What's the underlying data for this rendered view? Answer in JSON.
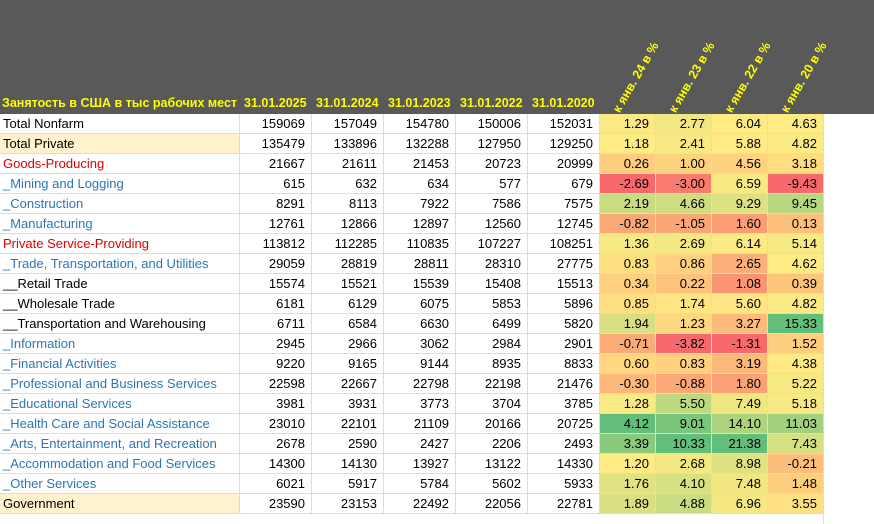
{
  "header": {
    "title": "Занятость в США в тыс рабочих мест",
    "dates": [
      "31.01.2025",
      "31.01.2024",
      "31.01.2023",
      "31.01.2022",
      "31.01.2020"
    ],
    "changes": [
      "к янв. 24 в %",
      "к янв. 23 в %",
      "к янв. 22 в %",
      "к янв. 20 в %"
    ]
  },
  "table": {
    "rows": [
      {
        "label": "Total Nonfarm",
        "color": "#000000",
        "values": [
          159069,
          157049,
          154780,
          150006,
          152031
        ],
        "changes": [
          "1.29",
          "2.77",
          "6.04",
          "4.63"
        ]
      },
      {
        "label": "Total Private",
        "color": "#000000",
        "highlight": "#fff2cc",
        "values": [
          135479,
          133896,
          132288,
          127950,
          129250
        ],
        "changes": [
          "1.18",
          "2.41",
          "5.88",
          "4.82"
        ]
      },
      {
        "label": "Goods-Producing",
        "color": "#e00000",
        "values": [
          21667,
          21611,
          21453,
          20723,
          20999
        ],
        "changes": [
          "0.26",
          "1.00",
          "4.56",
          "3.18"
        ]
      },
      {
        "label": "_Mining and Logging",
        "color": "#2e75b6",
        "values": [
          615,
          632,
          634,
          577,
          679
        ],
        "changes": [
          "-2.69",
          "-3.00",
          "6.59",
          "-9.43"
        ]
      },
      {
        "label": "_Construction",
        "color": "#2e75b6",
        "values": [
          8291,
          8113,
          7922,
          7586,
          7575
        ],
        "changes": [
          "2.19",
          "4.66",
          "9.29",
          "9.45"
        ]
      },
      {
        "label": "_Manufacturing",
        "color": "#2e75b6",
        "values": [
          12761,
          12866,
          12897,
          12560,
          12745
        ],
        "changes": [
          "-0.82",
          "-1.05",
          "1.60",
          "0.13"
        ]
      },
      {
        "label": "Private Service-Providing",
        "color": "#e00000",
        "values": [
          113812,
          112285,
          110835,
          107227,
          108251
        ],
        "changes": [
          "1.36",
          "2.69",
          "6.14",
          "5.14"
        ]
      },
      {
        "label": "_Trade, Transportation, and Utilities",
        "color": "#2e75b6",
        "values": [
          29059,
          28819,
          28811,
          28310,
          27775
        ],
        "changes": [
          "0.83",
          "0.86",
          "2.65",
          "4.62"
        ]
      },
      {
        "label": "__Retail Trade",
        "color": "#000000",
        "values": [
          15574,
          15521,
          15539,
          15408,
          15513
        ],
        "changes": [
          "0.34",
          "0.22",
          "1.08",
          "0.39"
        ]
      },
      {
        "label": "__Wholesale Trade",
        "color": "#000000",
        "values": [
          6181,
          6129,
          6075,
          5853,
          5896
        ],
        "changes": [
          "0.85",
          "1.74",
          "5.60",
          "4.82"
        ]
      },
      {
        "label": "__Transportation and Warehousing",
        "color": "#000000",
        "values": [
          6711,
          6584,
          6630,
          6499,
          5820
        ],
        "changes": [
          "1.94",
          "1.23",
          "3.27",
          "15.33"
        ]
      },
      {
        "label": "_Information",
        "color": "#2e75b6",
        "values": [
          2945,
          2966,
          3062,
          2984,
          2901
        ],
        "changes": [
          "-0.71",
          "-3.82",
          "-1.31",
          "1.52"
        ]
      },
      {
        "label": "_Financial Activities",
        "color": "#2e75b6",
        "values": [
          9220,
          9165,
          9144,
          8935,
          8833
        ],
        "changes": [
          "0.60",
          "0.83",
          "3.19",
          "4.38"
        ]
      },
      {
        "label": "_Professional and Business Services",
        "color": "#2e75b6",
        "values": [
          22598,
          22667,
          22798,
          22198,
          21476
        ],
        "changes": [
          "-0.30",
          "-0.88",
          "1.80",
          "5.22"
        ]
      },
      {
        "label": "_Educational Services",
        "color": "#2e75b6",
        "values": [
          3981,
          3931,
          3773,
          3704,
          3785
        ],
        "changes": [
          "1.28",
          "5.50",
          "7.49",
          "5.18"
        ]
      },
      {
        "label": "_Health Care and Social Assistance",
        "color": "#2e75b6",
        "values": [
          23010,
          22101,
          21109,
          20166,
          20725
        ],
        "changes": [
          "4.12",
          "9.01",
          "14.10",
          "11.03"
        ]
      },
      {
        "label": "_Arts, Entertainment, and Recreation",
        "color": "#2e75b6",
        "values": [
          2678,
          2590,
          2427,
          2206,
          2493
        ],
        "changes": [
          "3.39",
          "10.33",
          "21.38",
          "7.43"
        ]
      },
      {
        "label": "_Accommodation and Food Services",
        "color": "#2e75b6",
        "values": [
          14300,
          14130,
          13927,
          13122,
          14330
        ],
        "changes": [
          "1.20",
          "2.68",
          "8.98",
          "-0.21"
        ]
      },
      {
        "label": "_Other Services",
        "color": "#2e75b6",
        "values": [
          6021,
          5917,
          5784,
          5602,
          5933
        ],
        "changes": [
          "1.76",
          "4.10",
          "7.48",
          "1.48"
        ]
      },
      {
        "label": "Government",
        "color": "#000000",
        "highlight": "#fff2cc",
        "values": [
          23590,
          23153,
          22492,
          22056,
          22781
        ],
        "changes": [
          "1.89",
          "4.88",
          "6.96",
          "3.55"
        ]
      }
    ]
  }
}
